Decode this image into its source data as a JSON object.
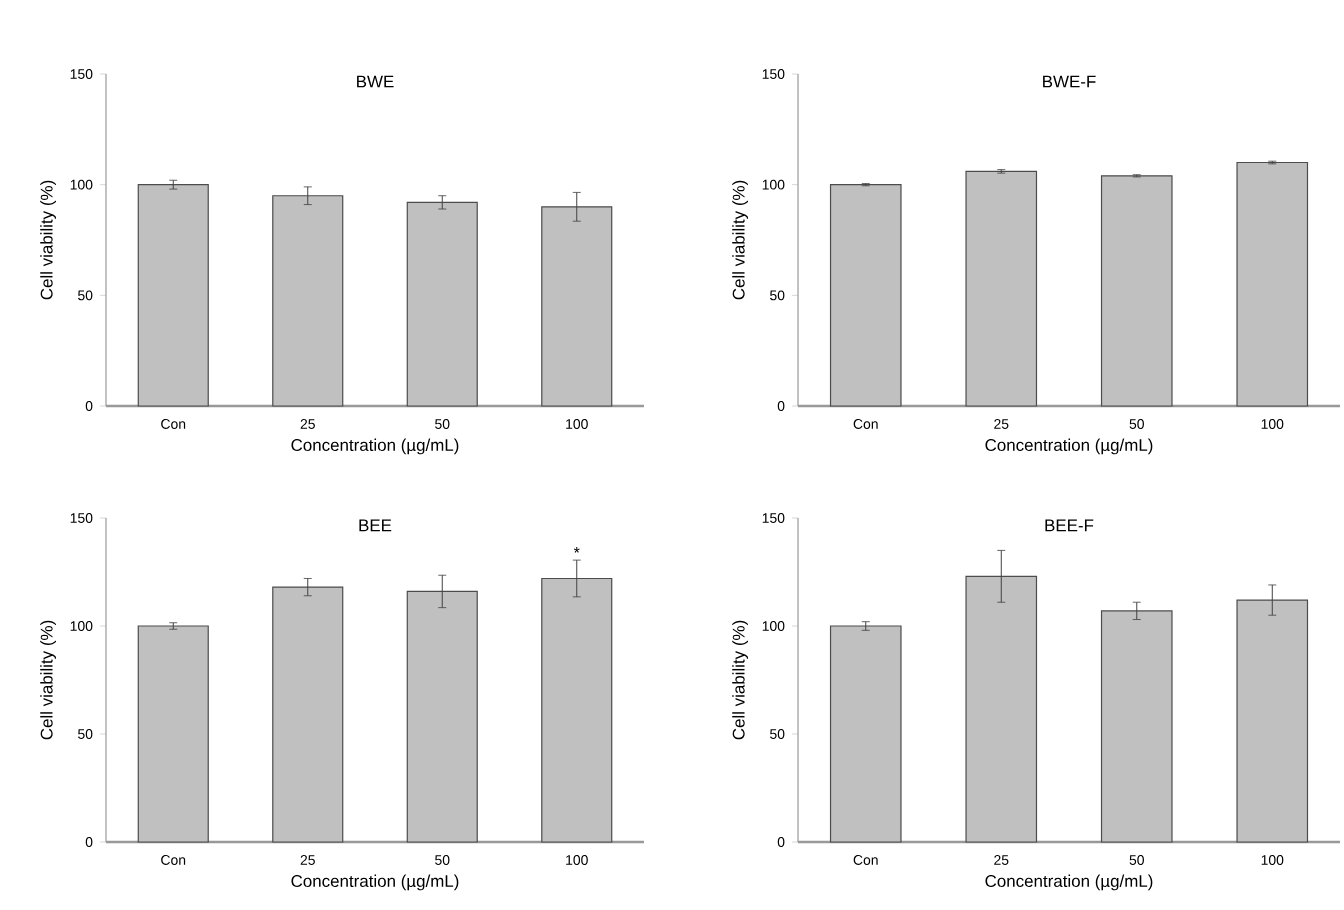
{
  "chart_data": [
    {
      "type": "bar",
      "title": "BWE",
      "xlabel": "Concentration (µg/mL)",
      "ylabel": "Cell viability (%)",
      "categories": [
        "Con",
        "25",
        "50",
        "100"
      ],
      "values": [
        100,
        95,
        92,
        90
      ],
      "errors": [
        2,
        4,
        3,
        6.5
      ],
      "color": "#c0c0c0",
      "ylim": [
        0,
        150
      ],
      "yticks": [
        0,
        50,
        100,
        150
      ]
    },
    {
      "type": "bar",
      "title": "BWE-F",
      "xlabel": "Concentration (µg/mL)",
      "ylabel": "Cell viability (%)",
      "categories": [
        "Con",
        "25",
        "50",
        "100"
      ],
      "values": [
        100,
        106,
        104,
        110
      ],
      "errors": [
        0.5,
        0.8,
        0.5,
        0.6
      ],
      "color": "#c0c0c0",
      "ylim": [
        0,
        150
      ],
      "yticks": [
        0,
        50,
        100,
        150
      ]
    },
    {
      "type": "bar",
      "title": "BEE",
      "xlabel": "Concentration (µg/mL)",
      "ylabel": "Cell viability (%)",
      "categories": [
        "Con",
        "25",
        "50",
        "100"
      ],
      "values": [
        100,
        118,
        116,
        122
      ],
      "errors": [
        1.5,
        4,
        7.5,
        8.5
      ],
      "color": "#c0c0c0",
      "ylim": [
        0,
        150
      ],
      "yticks": [
        0,
        50,
        100,
        150
      ],
      "annotations": [
        {
          "text": "*",
          "x": "100",
          "y": 134
        }
      ]
    },
    {
      "type": "bar",
      "title": "BEE-F",
      "xlabel": "Concentration (µg/mL)",
      "ylabel": "Cell viability (%)",
      "categories": [
        "Con",
        "25",
        "50",
        "100"
      ],
      "values": [
        100,
        123,
        107,
        112
      ],
      "errors": [
        2,
        12,
        4,
        7
      ],
      "color": "#c0c0c0",
      "ylim": [
        0,
        150
      ],
      "yticks": [
        0,
        50,
        100,
        150
      ]
    }
  ]
}
